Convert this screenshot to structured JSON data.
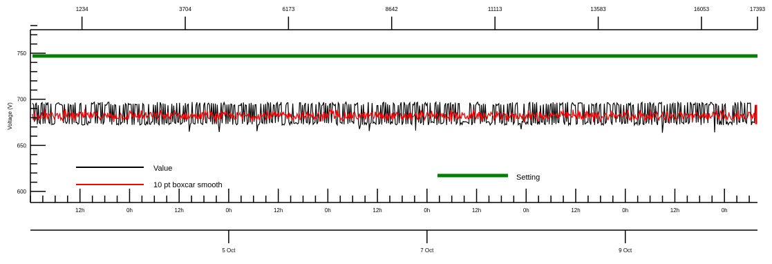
{
  "chart_data": {
    "type": "line",
    "title": "",
    "ylabel": "Voltage (V)",
    "ylim": [
      590,
      790
    ],
    "yticks": [
      {
        "value": 600,
        "label": "600"
      },
      {
        "value": 650,
        "label": "650"
      },
      {
        "value": 700,
        "label": "700"
      },
      {
        "value": 750,
        "label": "750"
      }
    ],
    "top_axis": {
      "range": [
        0,
        17393
      ],
      "ticks": [
        {
          "value": 1234,
          "label": "1234"
        },
        {
          "value": 3704,
          "label": "3704"
        },
        {
          "value": 6173,
          "label": "6173"
        },
        {
          "value": 8642,
          "label": "8642"
        },
        {
          "value": 11113,
          "label": "11113"
        },
        {
          "value": 13583,
          "label": "13583"
        },
        {
          "value": 16053,
          "label": "16053"
        },
        {
          "value": 17393,
          "label": "17393"
        }
      ]
    },
    "time_axis": {
      "range_hours": [
        0,
        176
      ],
      "minor_step_hours": 3,
      "ticks": [
        {
          "hour": 12,
          "label": "12h"
        },
        {
          "hour": 24,
          "label": "0h"
        },
        {
          "hour": 36,
          "label": "12h"
        },
        {
          "hour": 48,
          "label": "0h"
        },
        {
          "hour": 60,
          "label": "12h"
        },
        {
          "hour": 72,
          "label": "0h"
        },
        {
          "hour": 84,
          "label": "12h"
        },
        {
          "hour": 96,
          "label": "0h"
        },
        {
          "hour": 108,
          "label": "12h"
        },
        {
          "hour": 120,
          "label": "0h"
        },
        {
          "hour": 132,
          "label": "12h"
        },
        {
          "hour": 144,
          "label": "0h"
        },
        {
          "hour": 156,
          "label": "12h"
        },
        {
          "hour": 168,
          "label": "0h"
        }
      ],
      "date_ticks": [
        {
          "hour": 48,
          "label": "5 Oct"
        },
        {
          "hour": 96,
          "label": "7 Oct"
        },
        {
          "hour": 144,
          "label": "9 Oct"
        }
      ]
    },
    "series": [
      {
        "name": "Value",
        "color": "#000000",
        "kind": "noise",
        "low": 672,
        "high": 697,
        "mean": 685,
        "spike_low": 663
      },
      {
        "name": "10 pt boxcar smooth",
        "color": "#ff0000",
        "kind": "noise",
        "low": 675,
        "high": 690,
        "mean": 682
      },
      {
        "name": "Setting",
        "color": "#008000",
        "kind": "constant",
        "value": 747
      }
    ],
    "legend": [
      {
        "label": "Value",
        "color": "#000000",
        "placement": "bottom-left"
      },
      {
        "label": "10 pt boxcar smooth",
        "color": "#ff0000",
        "placement": "bottom-left"
      },
      {
        "label": "Setting",
        "color": "#008000",
        "placement": "bottom-center"
      }
    ]
  }
}
